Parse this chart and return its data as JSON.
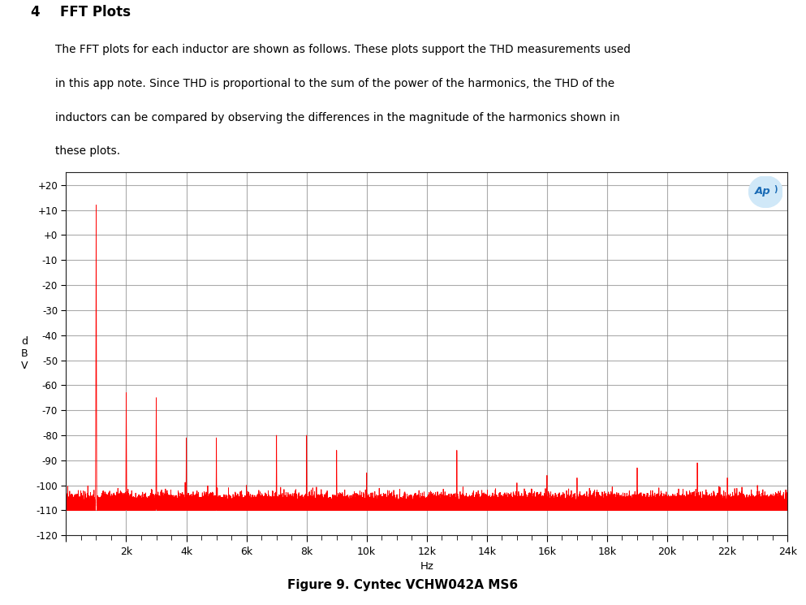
{
  "title_number": "4",
  "title_text": "FFT Plots",
  "description_line1": "The FFT plots for each inductor are shown as follows. These plots support the THD measurements used",
  "description_line2": "in this app note. Since THD is proportional to the sum of the power of the harmonics, the THD of the",
  "description_line3": "inductors can be compared by observing the differences in the magnitude of the harmonics shown in",
  "description_line4": "these plots.",
  "figure_caption": "Figure 9. Cyntec VCHW042A MS6",
  "xlabel": "Hz",
  "ylabel": "d\nB\nV",
  "ylim": [
    -120,
    25
  ],
  "xlim": [
    0,
    24000
  ],
  "yticks": [
    20,
    10,
    0,
    -10,
    -20,
    -30,
    -40,
    -50,
    -60,
    -70,
    -80,
    -90,
    -100,
    -110,
    -120
  ],
  "ytick_labels": [
    "+20",
    "+10",
    "+0",
    "-10",
    "-20",
    "-30",
    "-40",
    "-50",
    "-60",
    "-70",
    "-80",
    "-90",
    "-100",
    "-110",
    "-120"
  ],
  "xtick_positions": [
    0,
    2000,
    4000,
    6000,
    8000,
    10000,
    12000,
    14000,
    16000,
    18000,
    20000,
    22000,
    24000
  ],
  "xtick_labels": [
    "",
    "2k",
    "4k",
    "6k",
    "8k",
    "10k",
    "12k",
    "14k",
    "16k",
    "18k",
    "20k",
    "22k",
    "24k"
  ],
  "background_color": "#ffffff",
  "plot_bg_color": "#ffffff",
  "grid_color": "#888888",
  "line_color": "#ff0000",
  "noise_floor_mean": -110,
  "noise_amplitude": 2.5,
  "harmonics": [
    {
      "freq": 1000,
      "amp": 12,
      "sigma": 8
    },
    {
      "freq": 2000,
      "amp": -63,
      "sigma": 6
    },
    {
      "freq": 3000,
      "amp": -65,
      "sigma": 6
    },
    {
      "freq": 4000,
      "amp": -81,
      "sigma": 5
    },
    {
      "freq": 5000,
      "amp": -81,
      "sigma": 5
    },
    {
      "freq": 6000,
      "amp": -100,
      "sigma": 4
    },
    {
      "freq": 7000,
      "amp": -80,
      "sigma": 5
    },
    {
      "freq": 8000,
      "amp": -80,
      "sigma": 5
    },
    {
      "freq": 9000,
      "amp": -86,
      "sigma": 5
    },
    {
      "freq": 10000,
      "amp": -95,
      "sigma": 4
    },
    {
      "freq": 11000,
      "amp": -104,
      "sigma": 4
    },
    {
      "freq": 12000,
      "amp": -105,
      "sigma": 4
    },
    {
      "freq": 13000,
      "amp": -86,
      "sigma": 5
    },
    {
      "freq": 14000,
      "amp": -105,
      "sigma": 4
    },
    {
      "freq": 15000,
      "amp": -99,
      "sigma": 4
    },
    {
      "freq": 16000,
      "amp": -96,
      "sigma": 4
    },
    {
      "freq": 17000,
      "amp": -97,
      "sigma": 4
    },
    {
      "freq": 18000,
      "amp": -108,
      "sigma": 3
    },
    {
      "freq": 19000,
      "amp": -93,
      "sigma": 4
    },
    {
      "freq": 20000,
      "amp": -108,
      "sigma": 3
    },
    {
      "freq": 21000,
      "amp": -91,
      "sigma": 4
    },
    {
      "freq": 22000,
      "amp": -97,
      "sigma": 4
    },
    {
      "freq": 23000,
      "amp": -100,
      "sigma": 3
    },
    {
      "freq": 24000,
      "amp": -102,
      "sigma": 3
    }
  ]
}
